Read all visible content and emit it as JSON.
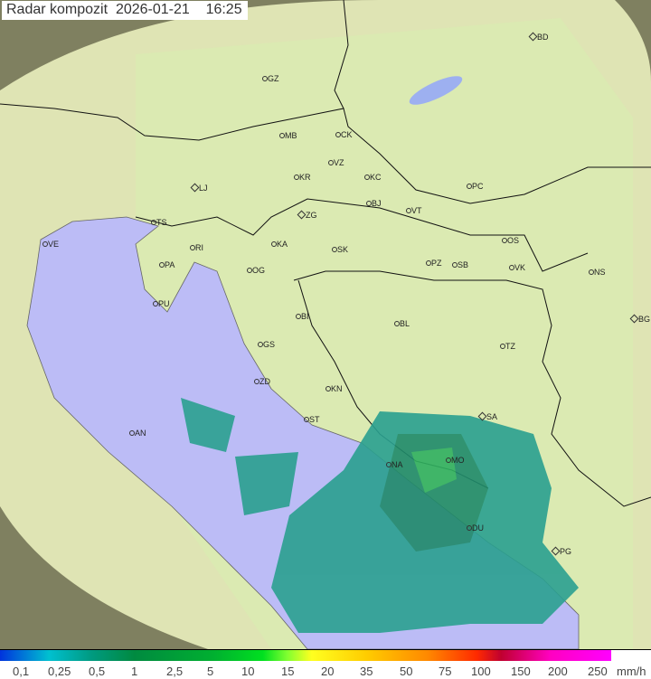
{
  "title": "Radar kompozit",
  "date": "2026-01-21",
  "time": "16:25",
  "colors": {
    "sea": "#b8b8f8",
    "land": "#e6e8b0",
    "outside": "#8a8a60",
    "radar_low": "#2aa090",
    "radar_high": "#00e020"
  },
  "cities": [
    "GZ",
    "BD",
    "MB",
    "CK",
    "VZ",
    "KR",
    "KC",
    "PC",
    "LJ",
    "ZG",
    "BJ",
    "VT",
    "TS",
    "VE",
    "RI",
    "KA",
    "SK",
    "OS",
    "PA",
    "OG",
    "PZ",
    "SB",
    "VK",
    "NS",
    "PU",
    "BI",
    "BL",
    "BG",
    "GS",
    "TZ",
    "ZD",
    "KN",
    "SA",
    "AN",
    "ST",
    "MO",
    "NA",
    "DU",
    "PG"
  ],
  "legend": {
    "ticks": [
      "0,1",
      "0,25",
      "0,5",
      "1",
      "2,5",
      "5",
      "10",
      "15",
      "20",
      "35",
      "50",
      "75",
      "100",
      "150",
      "200",
      "250"
    ],
    "unit": "mm/h"
  }
}
